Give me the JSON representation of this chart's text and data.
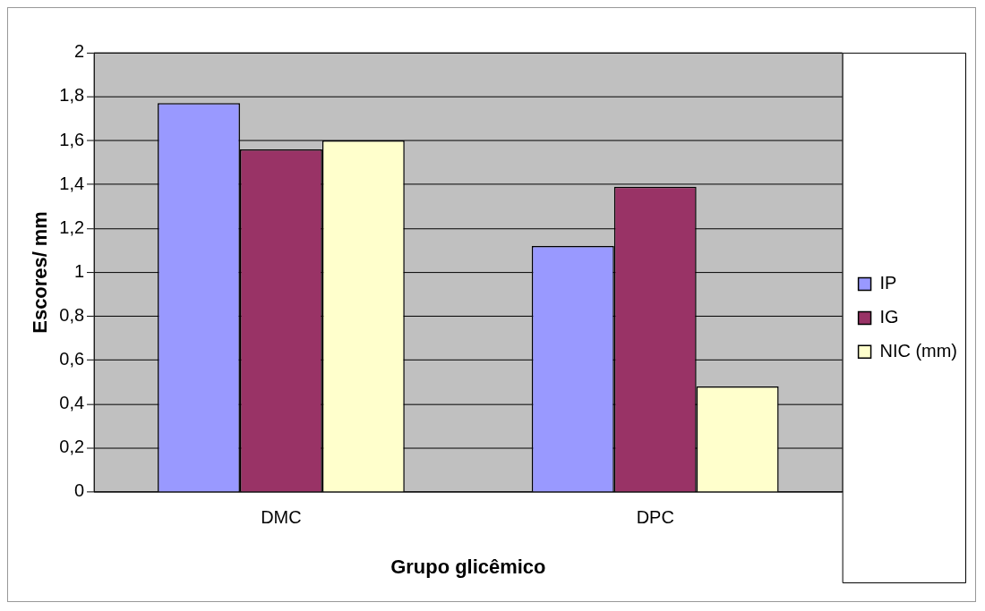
{
  "chart_data": {
    "type": "bar",
    "xlabel": "Grupo glicêmico",
    "ylabel": "Escores/ mm",
    "categories": [
      "DMC",
      "DPC"
    ],
    "series": [
      {
        "name": "IP",
        "color": "#9999ff",
        "values": [
          1.77,
          1.12
        ]
      },
      {
        "name": "IG",
        "color": "#993366",
        "values": [
          1.56,
          1.39
        ]
      },
      {
        "name": "NIC (mm)",
        "color": "#ffffcc",
        "values": [
          1.6,
          0.48
        ]
      }
    ],
    "ylim": [
      0,
      2
    ],
    "yticks": [
      0,
      {
        "value": 0.2,
        "label": "0,2"
      },
      {
        "value": 0.4,
        "label": "0,4"
      },
      {
        "value": 0.6,
        "label": "0,6"
      },
      {
        "value": 0.8,
        "label": "0,8"
      },
      1,
      {
        "value": 1.2,
        "label": "1,2"
      },
      {
        "value": 1.4,
        "label": "1,4"
      },
      {
        "value": 1.6,
        "label": "1,6"
      },
      {
        "value": 1.8,
        "label": "1,8"
      },
      2
    ],
    "grid": "y",
    "legend": "right"
  }
}
